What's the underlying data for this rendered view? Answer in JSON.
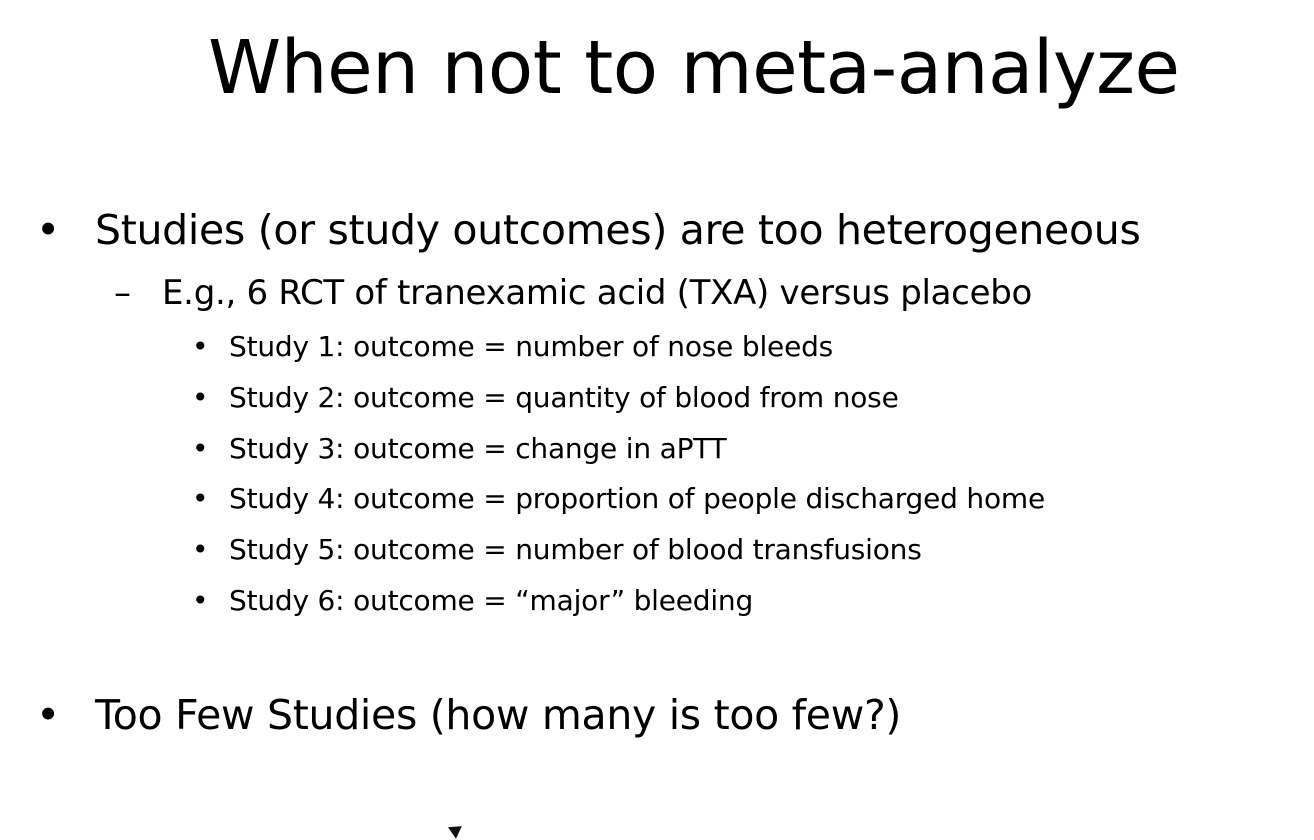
{
  "slide": {
    "title": "When not to meta-analyze",
    "bullet_l1": "•",
    "dash_l2": "–",
    "bullet_l3": "•",
    "points": [
      {
        "text": "Studies (or study outcomes) are too heterogeneous",
        "sub": {
          "text": "E.g., 6 RCT of tranexamic acid (TXA) versus placebo",
          "items": [
            "Study 1: outcome = number of nose bleeds",
            "Study 2:  outcome = quantity of blood from nose",
            "Study 3: outcome = change in aPTT",
            "Study 4: outcome = proportion of people discharged home",
            "Study 5: outcome = number of blood transfusions",
            "Study 6: outcome = “major” bleeding"
          ]
        }
      },
      {
        "text": "Too Few Studies (how many is too few?)"
      }
    ]
  },
  "cursor_icon": "mouse-pointer-icon"
}
